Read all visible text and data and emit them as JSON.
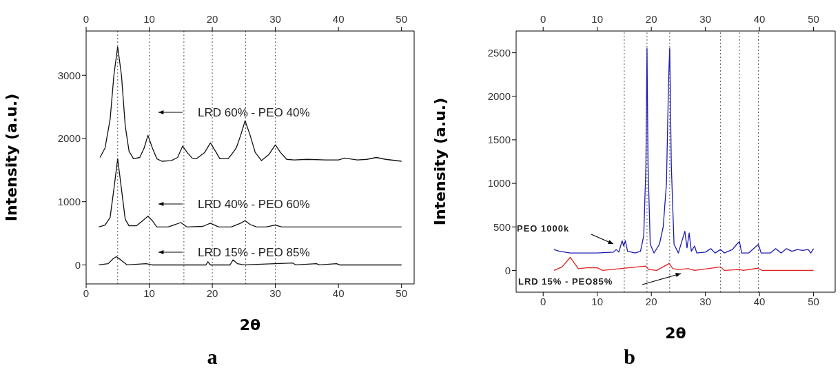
{
  "chart_data": [
    {
      "type": "line",
      "title": "a",
      "xlabel": "2θ",
      "ylabel": "Intensity (a.u.)",
      "xlim": [
        0,
        52
      ],
      "xticks": [
        0,
        10,
        20,
        30,
        40,
        50
      ],
      "x2lim": [
        0,
        52
      ],
      "x2ticks": [
        0,
        10,
        20,
        30,
        40,
        50
      ],
      "ylim": [
        -300,
        3700
      ],
      "yticks": [
        0,
        1000,
        2000,
        3000
      ],
      "marker": "none",
      "line_style": "solid",
      "series": [
        {
          "color": "#111111",
          "x": [
            2.2,
            3,
            3.8,
            4.4,
            5,
            5.6,
            6.2,
            6.8,
            7.5,
            8.5,
            9.2,
            9.8,
            10.5,
            11.2,
            12,
            13.5,
            14.5,
            15.3,
            16,
            16.8,
            17.5,
            18.8,
            19.7,
            20.5,
            21.2,
            22.5,
            23.3,
            23.8,
            24.5,
            25.2,
            26,
            26.8,
            27.8,
            29,
            30,
            30.8,
            31.8,
            33,
            35,
            38,
            40,
            41,
            43,
            44.5,
            46,
            47.5,
            50
          ],
          "values": [
            1700,
            1850,
            2300,
            3000,
            3450,
            3000,
            2200,
            1800,
            1680,
            1700,
            1850,
            2050,
            1850,
            1680,
            1640,
            1650,
            1700,
            1880,
            1780,
            1690,
            1680,
            1780,
            1930,
            1800,
            1680,
            1680,
            1780,
            1850,
            2050,
            2280,
            2050,
            1780,
            1650,
            1750,
            1900,
            1780,
            1670,
            1660,
            1670,
            1660,
            1660,
            1690,
            1660,
            1670,
            1700,
            1670,
            1640
          ]
        },
        {
          "color": "#111111",
          "x": [
            2,
            3,
            3.8,
            4.4,
            5,
            5.6,
            6.2,
            6.8,
            8,
            9.2,
            9.8,
            10.5,
            11.2,
            13,
            15,
            16,
            18.5,
            19.7,
            21,
            23,
            24.5,
            25.2,
            26,
            27,
            28.5,
            30,
            31,
            35,
            50
          ],
          "values": [
            600,
            630,
            750,
            1200,
            1680,
            1200,
            720,
            620,
            620,
            720,
            770,
            700,
            600,
            600,
            670,
            600,
            610,
            660,
            600,
            600,
            660,
            700,
            640,
            600,
            600,
            630,
            600,
            600,
            600
          ]
        },
        {
          "color": "#111111",
          "x": [
            2,
            3.5,
            4.3,
            4.8,
            5.5,
            6.5,
            9.5,
            10.5,
            19,
            19.3,
            19.7,
            22.8,
            23.3,
            24,
            25,
            32.8,
            33.2,
            36.5,
            37,
            39.7,
            40.2,
            50
          ],
          "values": [
            0,
            20,
            100,
            130,
            80,
            0,
            20,
            0,
            0,
            50,
            0,
            0,
            80,
            20,
            0,
            30,
            0,
            20,
            0,
            20,
            0,
            0
          ]
        }
      ],
      "ref_lines": [
        {
          "axis": "x",
          "value": 5,
          "line_style": "dotted"
        },
        {
          "axis": "x",
          "value": 10,
          "line_style": "dotted"
        },
        {
          "axis": "x",
          "value": 15.5,
          "line_style": "dotted"
        },
        {
          "axis": "x",
          "value": 20,
          "line_style": "dotted"
        },
        {
          "axis": "x",
          "value": 25.3,
          "line_style": "dotted"
        },
        {
          "axis": "x",
          "value": 30,
          "line_style": "dotted"
        }
      ],
      "annotations": [
        "LRD 60% - PEO 40%",
        "LRD 40% - PEO 60%",
        "LRD 15% - PEO 85%"
      ]
    },
    {
      "type": "line",
      "title": "b",
      "xlabel": "2θ",
      "ylabel": "Intensity (a.u.)",
      "xlim": [
        -5,
        54
      ],
      "xticks": [
        0,
        10,
        20,
        30,
        40,
        50
      ],
      "x2lim": [
        -5,
        54
      ],
      "x2ticks": [
        0,
        10,
        20,
        30,
        40,
        50
      ],
      "ylim": [
        -250,
        2750
      ],
      "yticks": [
        0,
        500,
        1000,
        1500,
        2000,
        2500
      ],
      "marker": "none",
      "line_style": "solid",
      "series": [
        {
          "color": "#1a1ab4",
          "x": [
            2,
            3,
            5,
            10,
            13,
            13.5,
            14,
            14.6,
            14.9,
            15.2,
            15.6,
            17,
            18,
            18.6,
            19,
            19.2,
            19.4,
            19.8,
            20.5,
            21.5,
            22.2,
            22.8,
            23.2,
            23.4,
            23.7,
            24.2,
            25,
            26.2,
            26.6,
            27,
            27.4,
            28,
            28.4,
            30,
            31,
            31.8,
            32.8,
            33.5,
            35,
            35.8,
            36.3,
            36.7,
            38,
            39.8,
            40.3,
            42,
            43,
            44,
            45,
            46,
            47,
            48,
            49,
            49.5,
            50
          ],
          "values": [
            240,
            220,
            200,
            200,
            210,
            240,
            210,
            340,
            280,
            340,
            220,
            200,
            220,
            400,
            1200,
            2550,
            1200,
            300,
            200,
            300,
            500,
            1000,
            2200,
            2550,
            1200,
            300,
            200,
            450,
            260,
            430,
            220,
            280,
            200,
            210,
            250,
            200,
            240,
            200,
            240,
            300,
            330,
            200,
            200,
            300,
            200,
            200,
            250,
            200,
            250,
            220,
            240,
            230,
            240,
            200,
            250
          ]
        },
        {
          "color": "#e02020",
          "x": [
            2,
            3.5,
            5,
            6.5,
            8,
            10,
            11,
            19,
            19.5,
            21,
            23.3,
            24,
            25,
            26.8,
            28,
            32.8,
            33.5,
            36.3,
            37,
            39.7,
            40.5,
            50
          ],
          "values": [
            0,
            40,
            150,
            20,
            30,
            30,
            0,
            50,
            10,
            0,
            80,
            20,
            10,
            20,
            0,
            40,
            0,
            10,
            0,
            25,
            0,
            0
          ]
        }
      ],
      "ref_lines": [
        {
          "axis": "x",
          "value": 15,
          "line_style": "dotted"
        },
        {
          "axis": "x",
          "value": 19.2,
          "line_style": "dotted"
        },
        {
          "axis": "x",
          "value": 23.4,
          "line_style": "dotted"
        },
        {
          "axis": "x",
          "value": 32.8,
          "line_style": "dotted"
        },
        {
          "axis": "x",
          "value": 36.3,
          "line_style": "dotted"
        },
        {
          "axis": "x",
          "value": 39.8,
          "line_style": "dotted"
        }
      ],
      "annotations": [
        "PEO 1000k",
        "LRD 15% - PEO85%"
      ]
    }
  ]
}
